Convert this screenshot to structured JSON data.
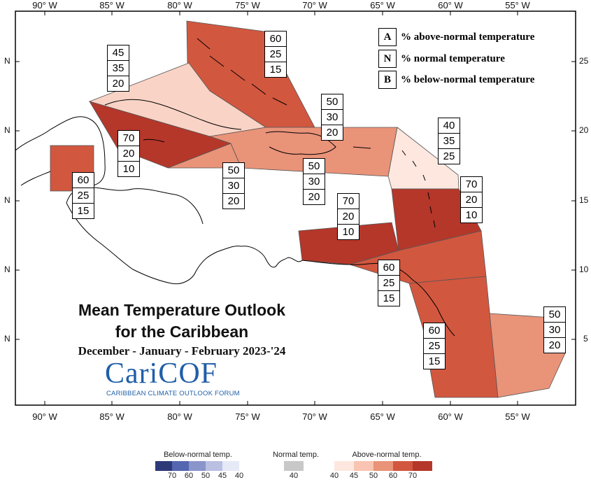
{
  "map": {
    "title_line1": "Mean Temperature Outlook",
    "title_line2": "for the Caribbean",
    "period": "December - January - February 2023-'24",
    "logo": "CariCOF",
    "logo_sub": "CARIBBEAN CLIMATE OUTLOOK FORUM"
  },
  "longitude_labels": [
    "90° W",
    "85° W",
    "80° W",
    "75° W",
    "70° W",
    "65° W",
    "60° W",
    "55° W"
  ],
  "latitude_labels_left": [
    "N",
    "N",
    "N",
    "N",
    "N"
  ],
  "latitude_labels_right": [
    "25",
    "20",
    "15",
    "10",
    "5"
  ],
  "legend": {
    "items": [
      {
        "letter": "A",
        "text": "% above-normal temperature"
      },
      {
        "letter": "N",
        "text": "% normal temperature"
      },
      {
        "letter": "B",
        "text": "% below-normal temperature"
      }
    ]
  },
  "regions": [
    {
      "name": "bahamas",
      "above": "60",
      "normal": "25",
      "below": "15",
      "color": "#d2573f"
    },
    {
      "name": "cuba",
      "above": "45",
      "normal": "35",
      "below": "20",
      "color": "#f9d3c5"
    },
    {
      "name": "jamaica-cayman",
      "above": "70",
      "normal": "20",
      "below": "10",
      "color": "#b5372a"
    },
    {
      "name": "belize",
      "above": "60",
      "normal": "25",
      "below": "15",
      "color": "#d2573f"
    },
    {
      "name": "south-jamaica",
      "above": "50",
      "normal": "30",
      "below": "20",
      "color": "#e99379"
    },
    {
      "name": "hispaniola",
      "above": "50",
      "normal": "30",
      "below": "20",
      "color": "#e99379"
    },
    {
      "name": "puerto-rico-south",
      "above": "50",
      "normal": "30",
      "below": "20",
      "color": "#e99379"
    },
    {
      "name": "leeward-islands",
      "above": "40",
      "normal": "35",
      "below": "25",
      "color": "#fde7de"
    },
    {
      "name": "windward-islands",
      "above": "70",
      "normal": "20",
      "below": "10",
      "color": "#b5372a"
    },
    {
      "name": "abc-islands",
      "above": "70",
      "normal": "20",
      "below": "10",
      "color": "#b5372a"
    },
    {
      "name": "trinidad-tobago",
      "above": "60",
      "normal": "25",
      "below": "15",
      "color": "#d2573f"
    },
    {
      "name": "guyana",
      "above": "60",
      "normal": "25",
      "below": "15",
      "color": "#d2573f"
    },
    {
      "name": "suriname-fr-guiana",
      "above": "50",
      "normal": "30",
      "below": "20",
      "color": "#e99379"
    }
  ],
  "scale": {
    "below_title": "Below-normal temp.",
    "normal_title": "Normal temp.",
    "above_title": "Above-normal temp.",
    "below_values": [
      "70",
      "60",
      "50",
      "45",
      "40"
    ],
    "normal_values": [
      "40"
    ],
    "above_values": [
      "40",
      "45",
      "50",
      "60",
      "70"
    ],
    "below_colors": [
      "#2e3a78",
      "#5566b0",
      "#8a95cc",
      "#b9c0e2",
      "#e6e9f6"
    ],
    "normal_color": "#c8c8c8",
    "above_colors": [
      "#fde7de",
      "#f9c4b1",
      "#e99379",
      "#d2573f",
      "#b5372a"
    ]
  }
}
